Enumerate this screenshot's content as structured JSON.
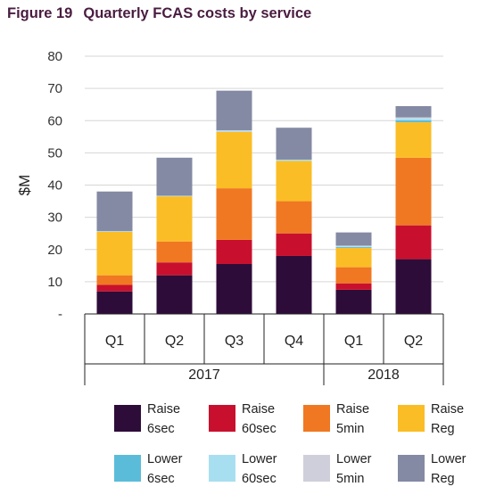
{
  "title": {
    "figure": "Figure 19",
    "text": "Quarterly FCAS costs by service"
  },
  "chart_data": {
    "type": "bar",
    "stacked": true,
    "ylabel": "$M",
    "ylim": [
      0,
      80
    ],
    "yticks": [
      {
        "value": 0,
        "label": "-"
      },
      {
        "value": 10,
        "label": "10"
      },
      {
        "value": 20,
        "label": "20"
      },
      {
        "value": 30,
        "label": "30"
      },
      {
        "value": 40,
        "label": "40"
      },
      {
        "value": 50,
        "label": "50"
      },
      {
        "value": 60,
        "label": "60"
      },
      {
        "value": 70,
        "label": "70"
      },
      {
        "value": 80,
        "label": "80"
      }
    ],
    "grid": true,
    "categories": [
      "Q1",
      "Q2",
      "Q3",
      "Q4",
      "Q1",
      "Q2"
    ],
    "groups": [
      {
        "label": "2017",
        "count": 4
      },
      {
        "label": "2018",
        "count": 2
      }
    ],
    "series": [
      {
        "name": "Raise 6sec",
        "color": "#2e0c3a",
        "values": [
          7,
          12,
          15.5,
          18,
          7.5,
          17
        ]
      },
      {
        "name": "Raise 60sec",
        "color": "#c8102e",
        "values": [
          2,
          4,
          7.5,
          7,
          2,
          10.5
        ]
      },
      {
        "name": "Raise 5min",
        "color": "#f07822",
        "values": [
          3,
          6.5,
          16,
          10,
          5,
          21
        ]
      },
      {
        "name": "Raise Reg",
        "color": "#fbbd25",
        "values": [
          13.5,
          14,
          17.5,
          12.5,
          6,
          11
        ]
      },
      {
        "name": "Lower 6sec",
        "color": "#5bbcd9",
        "values": [
          0,
          0,
          0,
          0,
          0.3,
          0.6
        ]
      },
      {
        "name": "Lower 60sec",
        "color": "#a8dff0",
        "values": [
          0.2,
          0.2,
          0.3,
          0.4,
          0.2,
          0.6
        ]
      },
      {
        "name": "Lower 5min",
        "color": "#cfcfdc",
        "values": [
          0,
          0,
          0.2,
          0,
          0.2,
          0.3
        ]
      },
      {
        "name": "Lower Reg",
        "color": "#848aa3",
        "values": [
          12.3,
          11.8,
          12.3,
          9.9,
          4.1,
          3.5
        ]
      }
    ]
  }
}
